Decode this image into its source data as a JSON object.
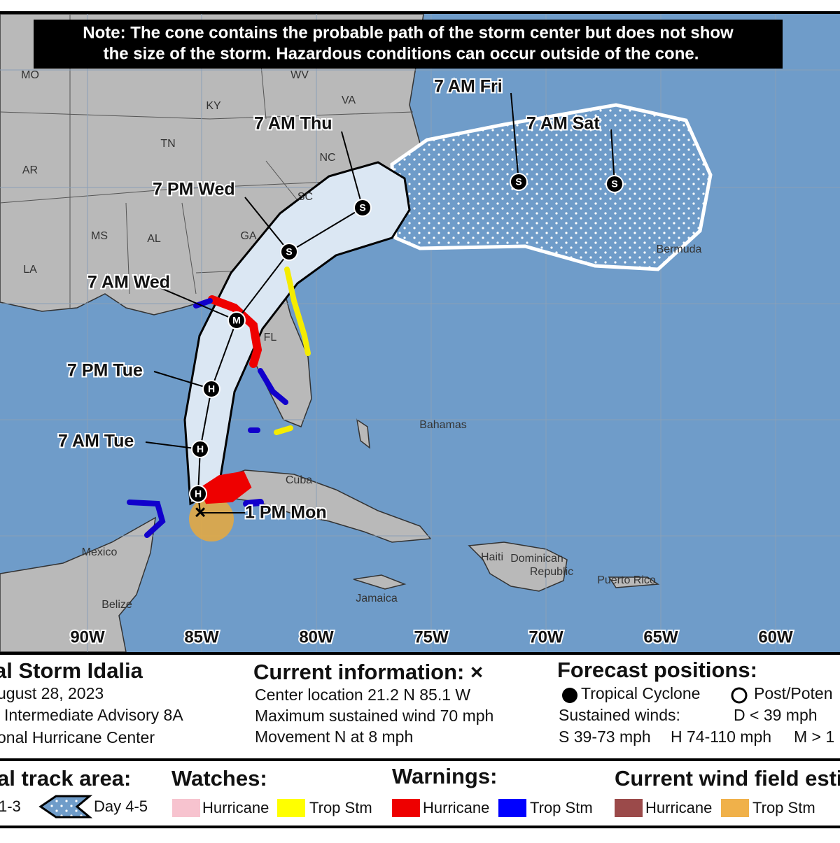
{
  "note": [
    "Note: The cone contains the probable path of the storm center but does not show",
    "the size of the storm. Hazardous conditions can occur outside of the cone."
  ],
  "states": [
    "MO",
    "WV",
    "VA",
    "KY",
    "TN",
    "AR",
    "NC",
    "SC",
    "GA",
    "MS",
    "AL",
    "LA",
    "FL"
  ],
  "places": [
    "Bermuda",
    "Bahamas",
    "Cuba",
    "Mexico",
    "Belize",
    "Haiti",
    "Dominican",
    "Republic",
    "Jamaica",
    "Puerto Rico"
  ],
  "forecast_times": [
    "7 AM Fri",
    "7 AM Sat",
    "7 AM Thu",
    "7 PM Wed",
    "7 AM Wed",
    "7 PM Tue",
    "7 AM Tue",
    "1 PM Mon"
  ],
  "markers": [
    "S",
    "S",
    "S",
    "S",
    "M",
    "H",
    "H",
    "H"
  ],
  "longitudes": [
    "90W",
    "85W",
    "80W",
    "75W",
    "70W",
    "65W",
    "60W"
  ],
  "storm": {
    "title": "al Storm Idalia",
    "date": "ugust 28, 2023",
    "advisory": "Intermediate Advisory 8A",
    "center": "onal Hurricane Center"
  },
  "current": {
    "heading": "Current information: ×",
    "lines": [
      "Center location 21.2 N 85.1 W",
      "Maximum sustained wind 70 mph",
      "Movement N at 8 mph"
    ]
  },
  "forecast": {
    "heading": "Forecast positions:",
    "tropical": "Tropical Cyclone",
    "post": "Post/Poten",
    "winds": "Sustained winds:",
    "d": "D < 39 mph",
    "s": "S 39-73 mph",
    "h": "H 74-110 mph",
    "m": "M > 1"
  },
  "legend": {
    "track": "al track area:",
    "day13": "1-3",
    "day45": "Day 4-5",
    "watches": "Watches:",
    "watch_items": [
      "Hurricane",
      "Trop Stm"
    ],
    "warnings": "Warnings:",
    "warning_items": [
      "Hurricane",
      "Trop Stm"
    ],
    "wind": "Current wind field esti",
    "wind_items": [
      "Hurricane",
      "Trop Stm"
    ]
  }
}
